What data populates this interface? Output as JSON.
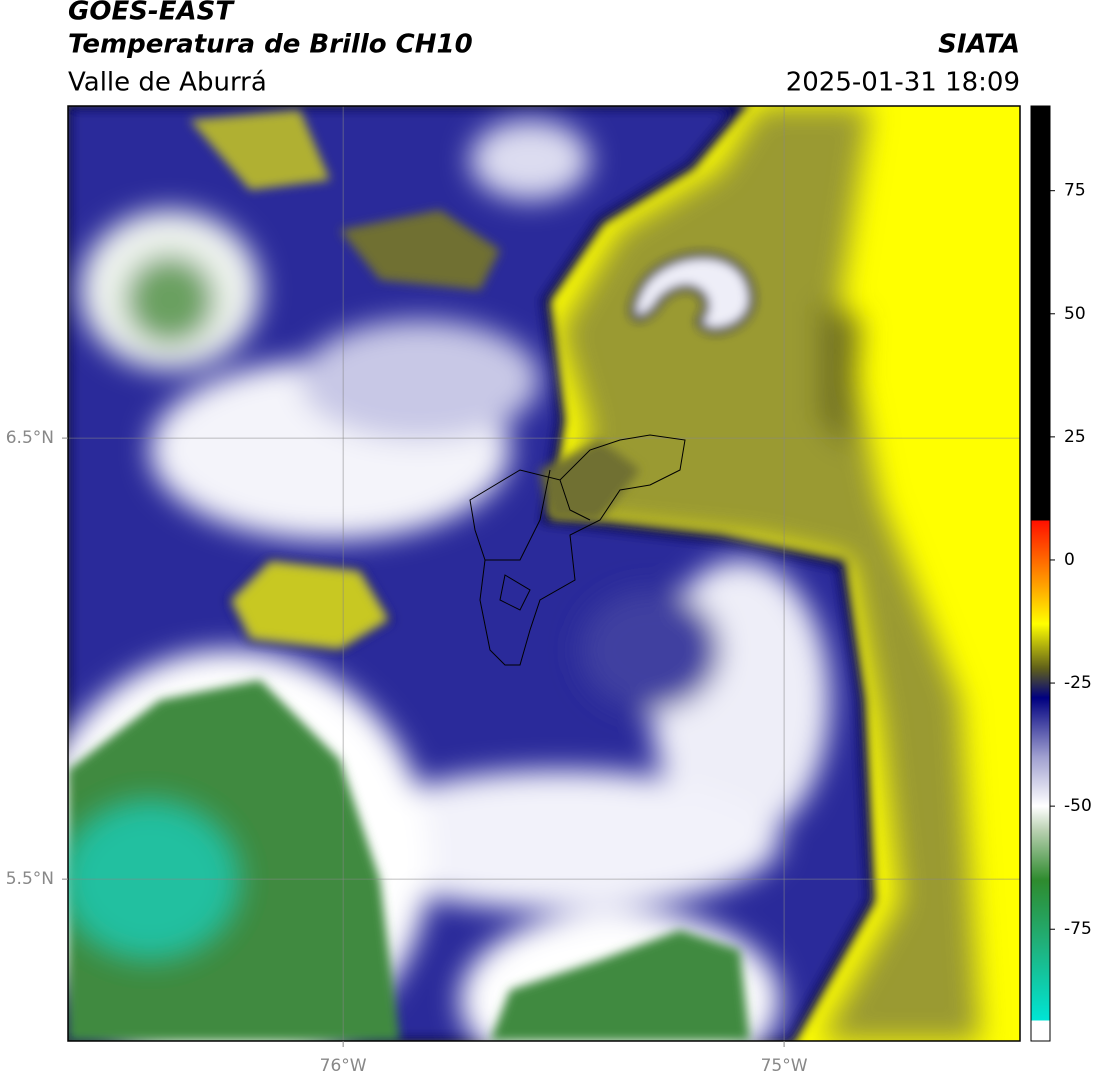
{
  "header": {
    "title": "GOES-EAST",
    "subtitle": "Temperatura de Brillo CH10",
    "agency": "SIATA",
    "region": "Valle de Aburrá",
    "timestamp": "2025-01-31 18:09"
  },
  "map": {
    "xlim": [
      -76.624,
      -74.465
    ],
    "ylim": [
      5.133,
      7.253
    ],
    "xticks": [
      {
        "value": -76,
        "label": "76°W"
      },
      {
        "value": -75,
        "label": "75°W"
      }
    ],
    "yticks": [
      {
        "value": 6.5,
        "label": "6.5°N"
      },
      {
        "value": 5.5,
        "label": "5.5°N"
      }
    ],
    "grid": true
  },
  "colorbar": {
    "lim": [
      -97.7,
      92.2
    ],
    "ticks": [
      -75,
      -50,
      -25,
      0,
      25,
      50,
      75
    ],
    "stops": [
      {
        "value": -97.7,
        "color": "#ffffff"
      },
      {
        "value": -93.5,
        "color": "#ffffff"
      },
      {
        "value": -93.5,
        "color": "#00e5d5"
      },
      {
        "value": -78,
        "color": "#20b07a"
      },
      {
        "value": -65,
        "color": "#2e8b2e"
      },
      {
        "value": -55,
        "color": "#b8d0b0"
      },
      {
        "value": -50,
        "color": "#ffffff"
      },
      {
        "value": -40,
        "color": "#a0a0d0"
      },
      {
        "value": -28,
        "color": "#000080"
      },
      {
        "value": -22,
        "color": "#60601a"
      },
      {
        "value": -13,
        "color": "#ffff00"
      },
      {
        "value": -5,
        "color": "#ffa000"
      },
      {
        "value": 8,
        "color": "#ff1000"
      },
      {
        "value": 8,
        "color": "#000000"
      },
      {
        "value": 92.2,
        "color": "#000000"
      }
    ]
  }
}
